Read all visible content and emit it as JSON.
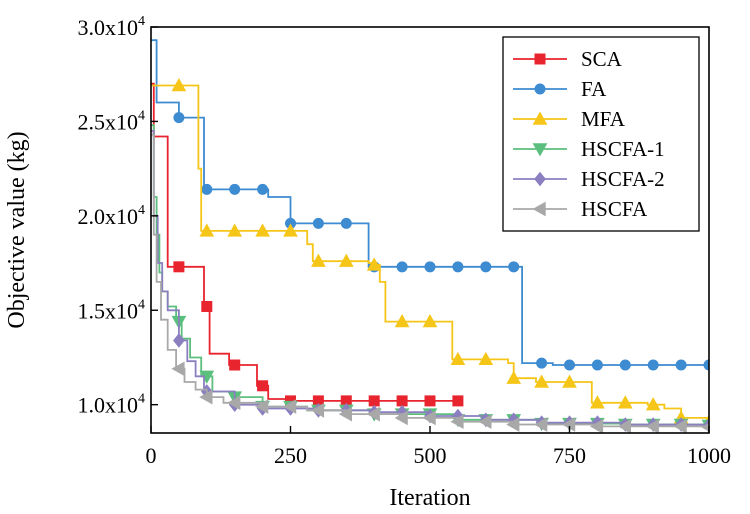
{
  "chart_data": {
    "type": "line",
    "title": "",
    "xlabel": "Iteration",
    "ylabel": "Objective value (kg)",
    "xlim": [
      0,
      1000
    ],
    "ylim": [
      8500,
      30000
    ],
    "x_ticks": [
      0,
      250,
      500,
      750,
      1000
    ],
    "y_ticks": [
      {
        "value": 10000,
        "mantissa": "1.0x10",
        "exp": "4"
      },
      {
        "value": 15000,
        "mantissa": "1.5x10",
        "exp": "4"
      },
      {
        "value": 20000,
        "mantissa": "2.0x10",
        "exp": "4"
      },
      {
        "value": 25000,
        "mantissa": "2.5x10",
        "exp": "4"
      },
      {
        "value": 30000,
        "mantissa": "3.0x10",
        "exp": "4"
      }
    ],
    "step_style": "post",
    "legend_position": "top-right",
    "series": [
      {
        "name": "SCA",
        "color": "#e8242e",
        "marker": "square",
        "marker_every": 50,
        "points": [
          [
            0,
            27000
          ],
          [
            5,
            24200
          ],
          [
            20,
            24200
          ],
          [
            30,
            17300
          ],
          [
            80,
            17300
          ],
          [
            95,
            15200
          ],
          [
            105,
            12700
          ],
          [
            140,
            12100
          ],
          [
            180,
            12100
          ],
          [
            190,
            11000
          ],
          [
            210,
            10300
          ],
          [
            250,
            10200
          ],
          [
            550,
            10200
          ]
        ]
      },
      {
        "name": "FA",
        "color": "#3d8bd1",
        "marker": "circle",
        "marker_every": 50,
        "points": [
          [
            0,
            29300
          ],
          [
            10,
            26000
          ],
          [
            50,
            25200
          ],
          [
            80,
            25200
          ],
          [
            95,
            21400
          ],
          [
            200,
            21400
          ],
          [
            210,
            21000
          ],
          [
            250,
            19600
          ],
          [
            370,
            19600
          ],
          [
            390,
            17300
          ],
          [
            500,
            17300
          ],
          [
            640,
            17300
          ],
          [
            665,
            12200
          ],
          [
            690,
            12200
          ],
          [
            720,
            12100
          ],
          [
            1000,
            12100
          ]
        ]
      },
      {
        "name": "MFA",
        "color": "#f5c518",
        "marker": "triangle-up",
        "marker_every": 50,
        "points": [
          [
            0,
            26900
          ],
          [
            70,
            26900
          ],
          [
            85,
            22500
          ],
          [
            90,
            19200
          ],
          [
            250,
            19200
          ],
          [
            280,
            18500
          ],
          [
            290,
            17600
          ],
          [
            390,
            17500
          ],
          [
            400,
            17400
          ],
          [
            410,
            16500
          ],
          [
            420,
            14400
          ],
          [
            500,
            14400
          ],
          [
            540,
            12400
          ],
          [
            600,
            12400
          ],
          [
            640,
            12200
          ],
          [
            650,
            11400
          ],
          [
            690,
            11200
          ],
          [
            780,
            11200
          ],
          [
            790,
            10100
          ],
          [
            890,
            10000
          ],
          [
            920,
            9800
          ],
          [
            950,
            9300
          ],
          [
            1000,
            9100
          ]
        ]
      },
      {
        "name": "HSCFA-1",
        "color": "#5bbf7d",
        "marker": "triangle-down",
        "marker_every": 50,
        "points": [
          [
            0,
            24800
          ],
          [
            5,
            21000
          ],
          [
            10,
            19000
          ],
          [
            15,
            17000
          ],
          [
            20,
            16000
          ],
          [
            30,
            15200
          ],
          [
            45,
            14400
          ],
          [
            55,
            13500
          ],
          [
            70,
            12500
          ],
          [
            90,
            11500
          ],
          [
            110,
            10700
          ],
          [
            150,
            10400
          ],
          [
            200,
            9900
          ],
          [
            280,
            9700
          ],
          [
            400,
            9500
          ],
          [
            550,
            9200
          ],
          [
            700,
            9000
          ],
          [
            850,
            8950
          ],
          [
            1000,
            8900
          ]
        ]
      },
      {
        "name": "HSCFA-2",
        "color": "#8b7fc0",
        "marker": "diamond",
        "marker_every": 50,
        "points": [
          [
            0,
            24500
          ],
          [
            5,
            20000
          ],
          [
            12,
            17500
          ],
          [
            20,
            16000
          ],
          [
            30,
            15000
          ],
          [
            50,
            13400
          ],
          [
            65,
            12300
          ],
          [
            80,
            11500
          ],
          [
            95,
            10700
          ],
          [
            150,
            10000
          ],
          [
            200,
            9800
          ],
          [
            300,
            9700
          ],
          [
            400,
            9600
          ],
          [
            500,
            9400
          ],
          [
            600,
            9200
          ],
          [
            700,
            9050
          ],
          [
            850,
            8950
          ],
          [
            1000,
            8900
          ]
        ]
      },
      {
        "name": "HSCFA",
        "color": "#a8a8a8",
        "marker": "triangle-left",
        "marker_every": 50,
        "points": [
          [
            0,
            24300
          ],
          [
            5,
            19000
          ],
          [
            10,
            16500
          ],
          [
            18,
            14500
          ],
          [
            30,
            12900
          ],
          [
            45,
            11900
          ],
          [
            60,
            11200
          ],
          [
            80,
            10800
          ],
          [
            100,
            10400
          ],
          [
            130,
            10100
          ],
          [
            200,
            9900
          ],
          [
            280,
            9700
          ],
          [
            350,
            9500
          ],
          [
            450,
            9300
          ],
          [
            550,
            9100
          ],
          [
            650,
            8950
          ],
          [
            800,
            8850
          ],
          [
            1000,
            8800
          ]
        ]
      }
    ]
  }
}
